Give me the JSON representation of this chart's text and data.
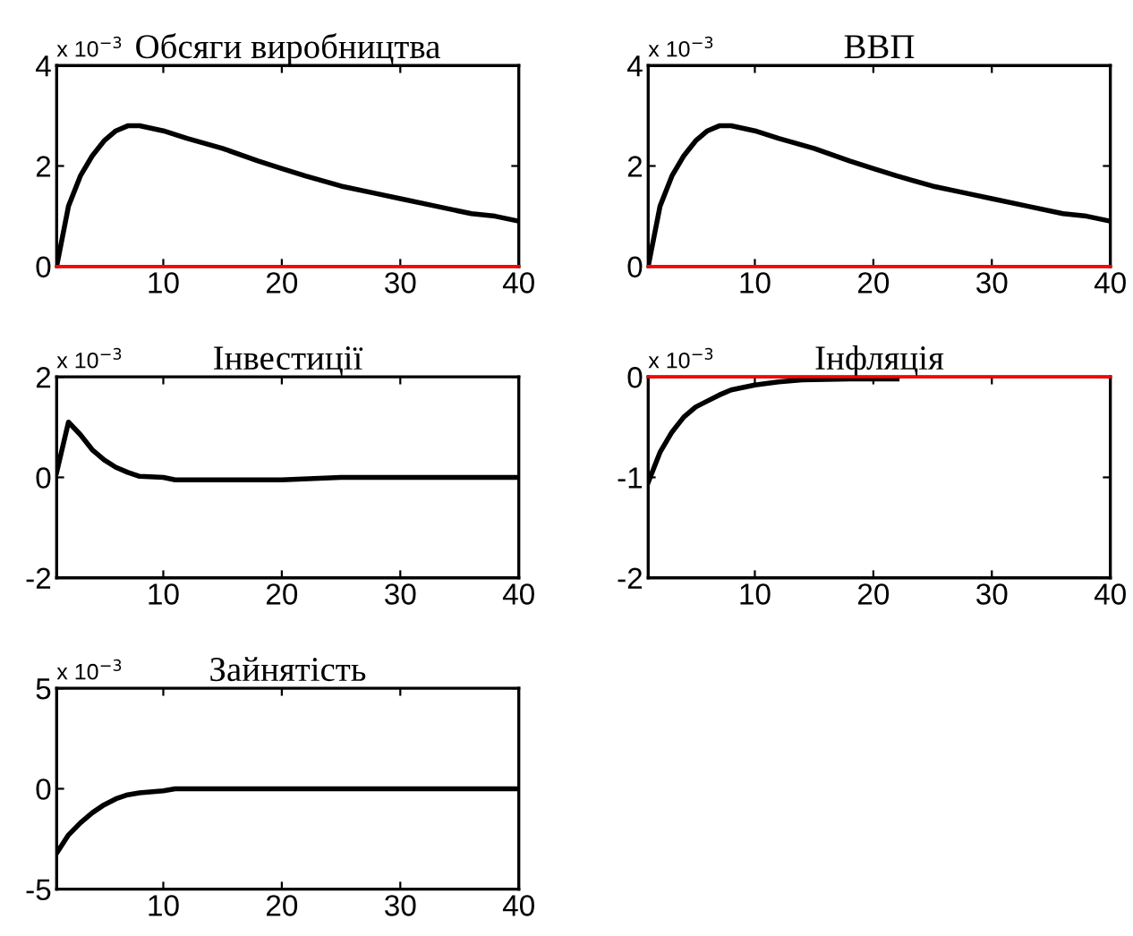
{
  "chart_data": [
    {
      "type": "line",
      "title": "Обсяги виробництва",
      "annotations": [
        "x 10$^{−3}$"
      ],
      "x": [
        1,
        2,
        3,
        4,
        5,
        6,
        7,
        8,
        10,
        12,
        15,
        18,
        20,
        22,
        25,
        28,
        30,
        33,
        36,
        38,
        40
      ],
      "series": [
        {
          "color": "#000000",
          "values": [
            0,
            1.2,
            1.8,
            2.2,
            2.5,
            2.7,
            2.8,
            2.8,
            2.7,
            2.55,
            2.35,
            2.1,
            1.95,
            1.8,
            1.6,
            1.45,
            1.35,
            1.2,
            1.05,
            1.0,
            0.9
          ]
        }
      ],
      "ref_lines": [
        {
          "axis": "y",
          "value": 0,
          "color": "#ff0000"
        }
      ],
      "xlim": [
        1,
        40
      ],
      "xticks": [
        10,
        20,
        30,
        40
      ],
      "ylim": [
        0,
        4
      ],
      "yticks": [
        0,
        2,
        4
      ],
      "grid": false,
      "legend": false
    },
    {
      "type": "line",
      "title": "ВВП",
      "annotations": [
        "x 10$^{−3}$"
      ],
      "x": [
        1,
        2,
        3,
        4,
        5,
        6,
        7,
        8,
        10,
        12,
        15,
        18,
        20,
        22,
        25,
        28,
        30,
        33,
        36,
        38,
        40
      ],
      "series": [
        {
          "color": "#000000",
          "values": [
            0,
            1.2,
            1.8,
            2.2,
            2.5,
            2.7,
            2.8,
            2.8,
            2.7,
            2.55,
            2.35,
            2.1,
            1.95,
            1.8,
            1.6,
            1.45,
            1.35,
            1.2,
            1.05,
            1.0,
            0.9
          ]
        }
      ],
      "ref_lines": [
        {
          "axis": "y",
          "value": 0,
          "color": "#ff0000"
        }
      ],
      "xlim": [
        1,
        40
      ],
      "xticks": [
        10,
        20,
        30,
        40
      ],
      "ylim": [
        0,
        4
      ],
      "yticks": [
        0,
        2,
        4
      ],
      "grid": false,
      "legend": false
    },
    {
      "type": "line",
      "title": "Інвестиції",
      "annotations": [
        "x 10$^{−3}$"
      ],
      "x": [
        1,
        2,
        3,
        4,
        5,
        6,
        7,
        8,
        10,
        11,
        20,
        25,
        30,
        40
      ],
      "series": [
        {
          "color": "#000000",
          "values": [
            0.1,
            1.1,
            0.85,
            0.55,
            0.35,
            0.2,
            0.1,
            0.02,
            0,
            -0.05,
            -0.05,
            0,
            0,
            0
          ]
        }
      ],
      "xlim": [
        1,
        40
      ],
      "xticks": [
        10,
        20,
        30,
        40
      ],
      "ylim": [
        -2,
        2
      ],
      "yticks": [
        -2,
        0,
        2
      ],
      "grid": false,
      "legend": false
    },
    {
      "type": "line",
      "title": "Інфляція",
      "annotations": [
        "x 10$^{−3}$"
      ],
      "x": [
        1,
        2,
        3,
        4,
        5,
        6,
        7,
        8,
        10,
        12,
        14,
        18,
        22
      ],
      "series": [
        {
          "color": "#000000",
          "values": [
            -1.05,
            -0.75,
            -0.55,
            -0.4,
            -0.3,
            -0.24,
            -0.18,
            -0.13,
            -0.08,
            -0.05,
            -0.03,
            -0.02,
            -0.02
          ]
        }
      ],
      "ref_lines": [
        {
          "axis": "y",
          "value": 0,
          "color": "#ff0000"
        }
      ],
      "xlim": [
        1,
        40
      ],
      "xticks": [
        10,
        20,
        30,
        40
      ],
      "ylim": [
        -2,
        0
      ],
      "yticks": [
        -2,
        -1,
        0
      ],
      "grid": false,
      "legend": false
    },
    {
      "type": "line",
      "title": "Зайнятість",
      "annotations": [
        "x 10$^{−3}$"
      ],
      "x": [
        1,
        2,
        3,
        4,
        5,
        6,
        7,
        8,
        10,
        11,
        20,
        30,
        40
      ],
      "series": [
        {
          "color": "#000000",
          "values": [
            -3.2,
            -2.3,
            -1.7,
            -1.2,
            -0.8,
            -0.5,
            -0.3,
            -0.2,
            -0.1,
            0,
            0,
            0,
            0
          ]
        }
      ],
      "xlim": [
        1,
        40
      ],
      "xticks": [
        10,
        20,
        30,
        40
      ],
      "ylim": [
        -5,
        5
      ],
      "yticks": [
        -5,
        0,
        5
      ],
      "grid": false,
      "legend": false
    }
  ]
}
